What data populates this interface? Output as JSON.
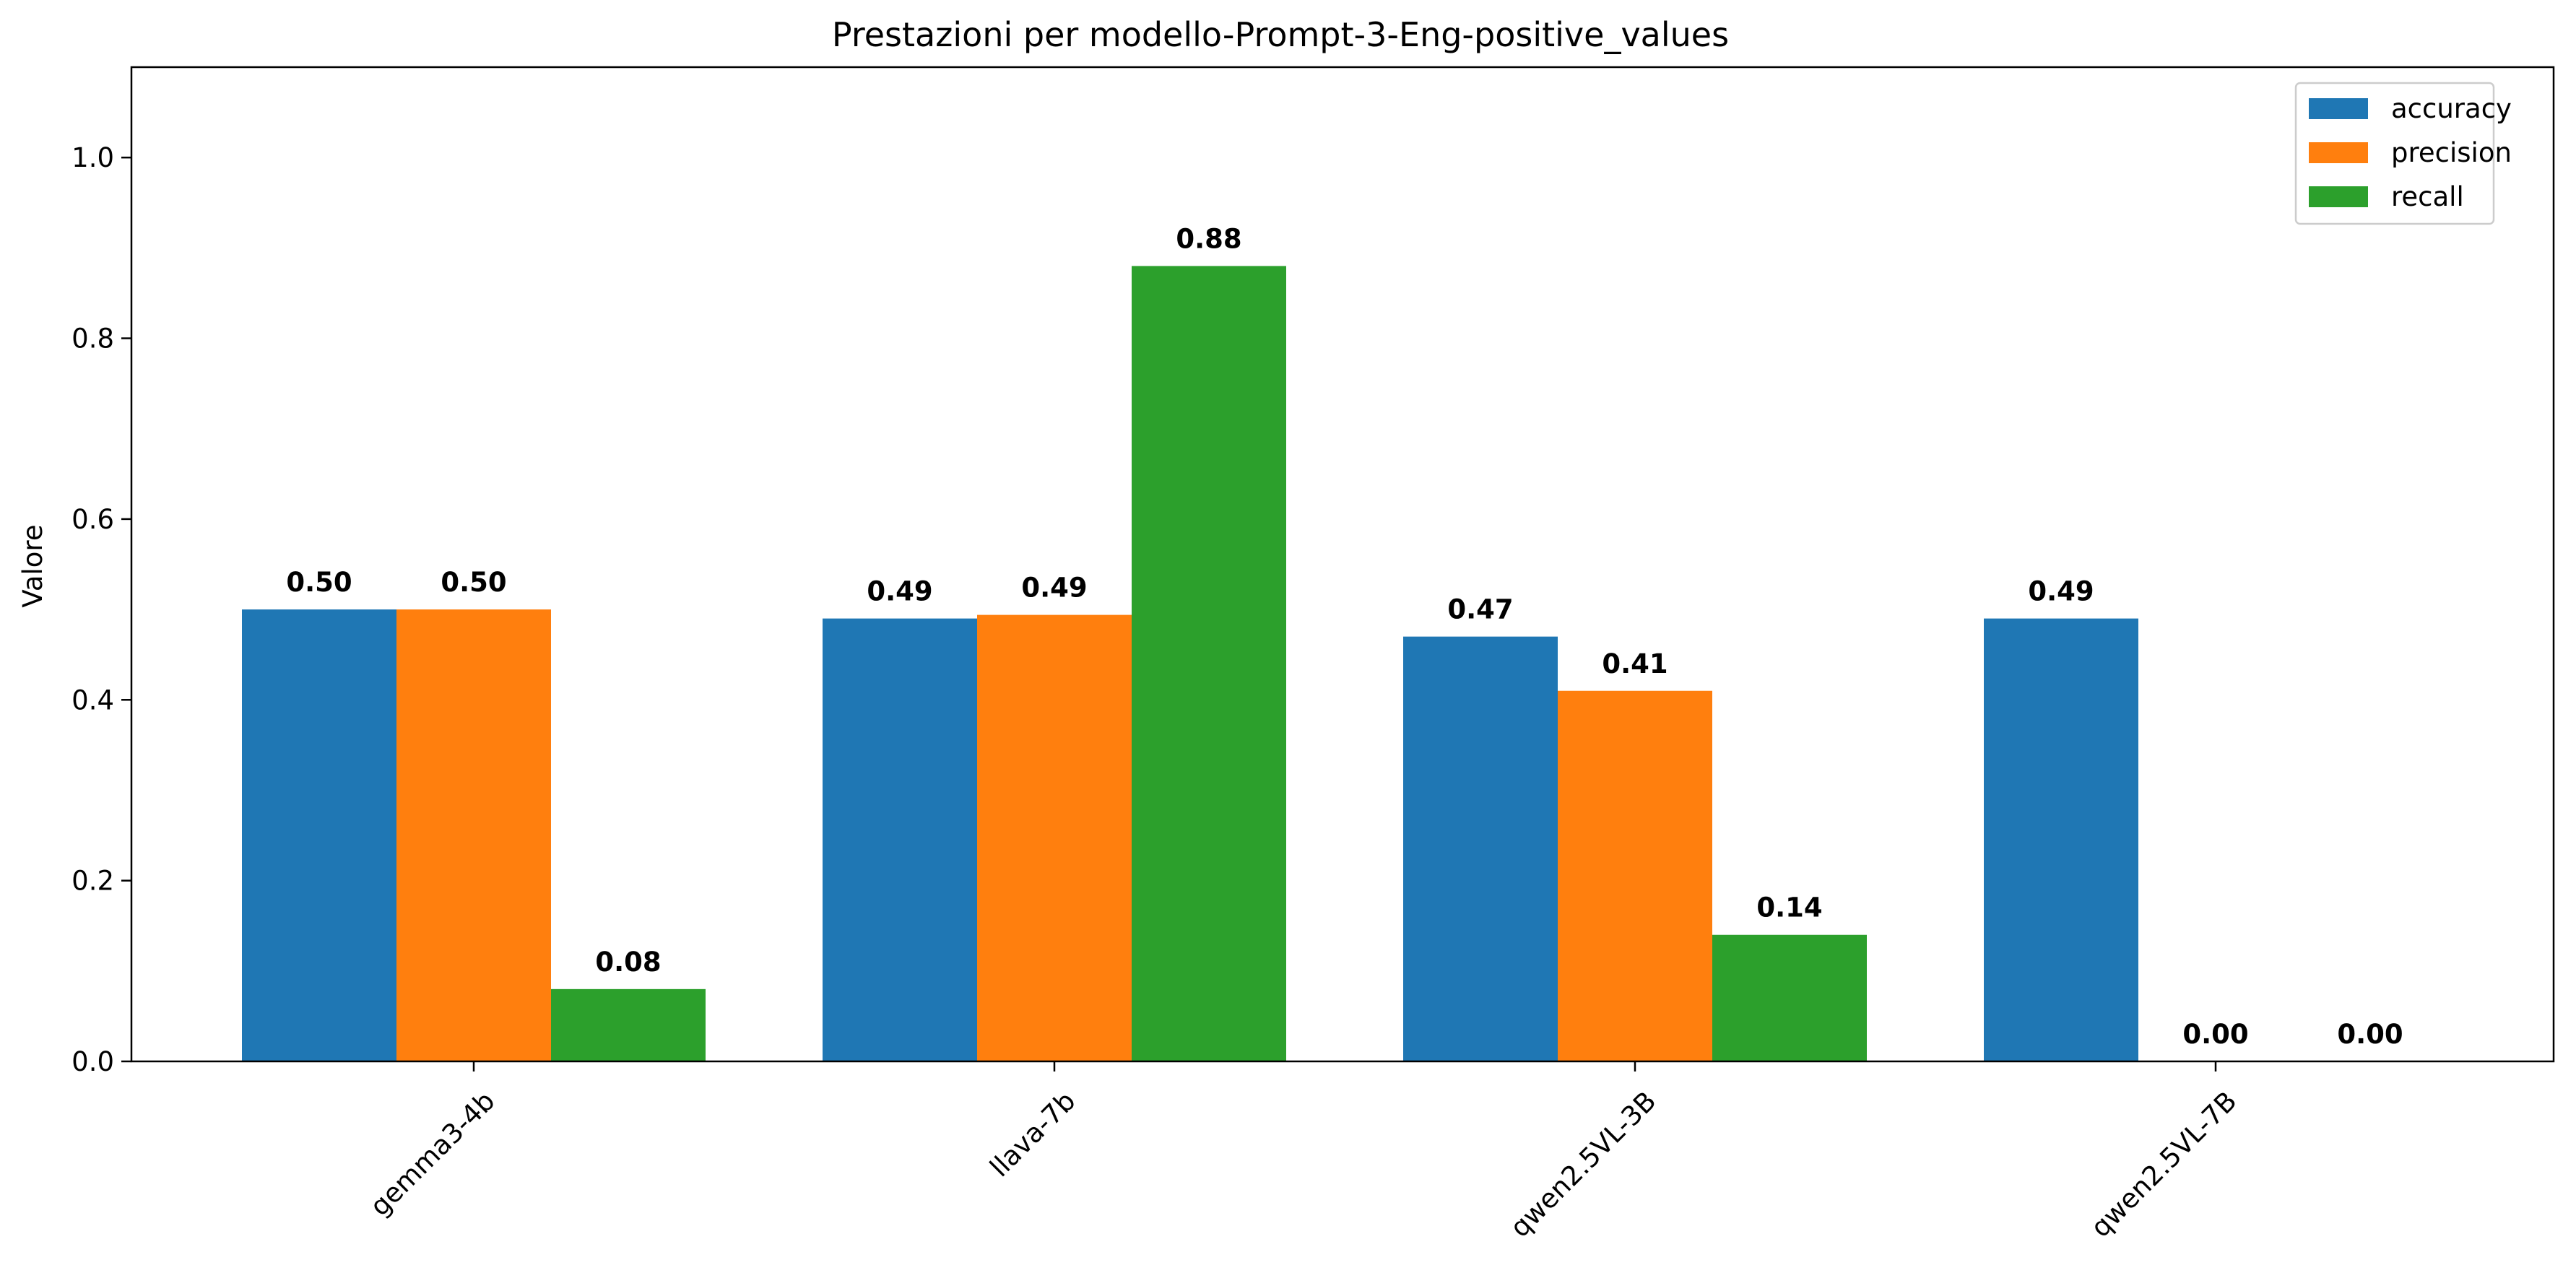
{
  "chart_data": {
    "type": "bar",
    "title": "Prestazioni per modello-Prompt-3-Eng-positive_values",
    "xlabel": "",
    "ylabel": "Valore",
    "ylim": [
      0,
      1.1
    ],
    "yticks": [
      0.0,
      0.2,
      0.4,
      0.6,
      0.8,
      1.0
    ],
    "ytick_labels": [
      "0.0",
      "0.2",
      "0.4",
      "0.6",
      "0.8",
      "1.0"
    ],
    "grid": false,
    "legend_position": "top-right",
    "categories": [
      "gemma3-4b",
      "llava-7b",
      "qwen2.5VL-3B",
      "qwen2.5VL-7B"
    ],
    "series": [
      {
        "name": "accuracy",
        "color": "#1f77b4",
        "values": [
          0.5,
          0.49,
          0.47,
          0.49
        ],
        "labels": [
          "0.50",
          "0.49",
          "0.47",
          "0.49"
        ]
      },
      {
        "name": "precision",
        "color": "#ff7f0e",
        "values": [
          0.5,
          0.494,
          0.41,
          0.0
        ],
        "labels": [
          "0.50",
          "0.49",
          "0.41",
          "0.00"
        ]
      },
      {
        "name": "recall",
        "color": "#2ca02c",
        "values": [
          0.08,
          0.88,
          0.14,
          0.0
        ],
        "labels": [
          "0.08",
          "0.88",
          "0.14",
          "0.00"
        ]
      }
    ]
  }
}
